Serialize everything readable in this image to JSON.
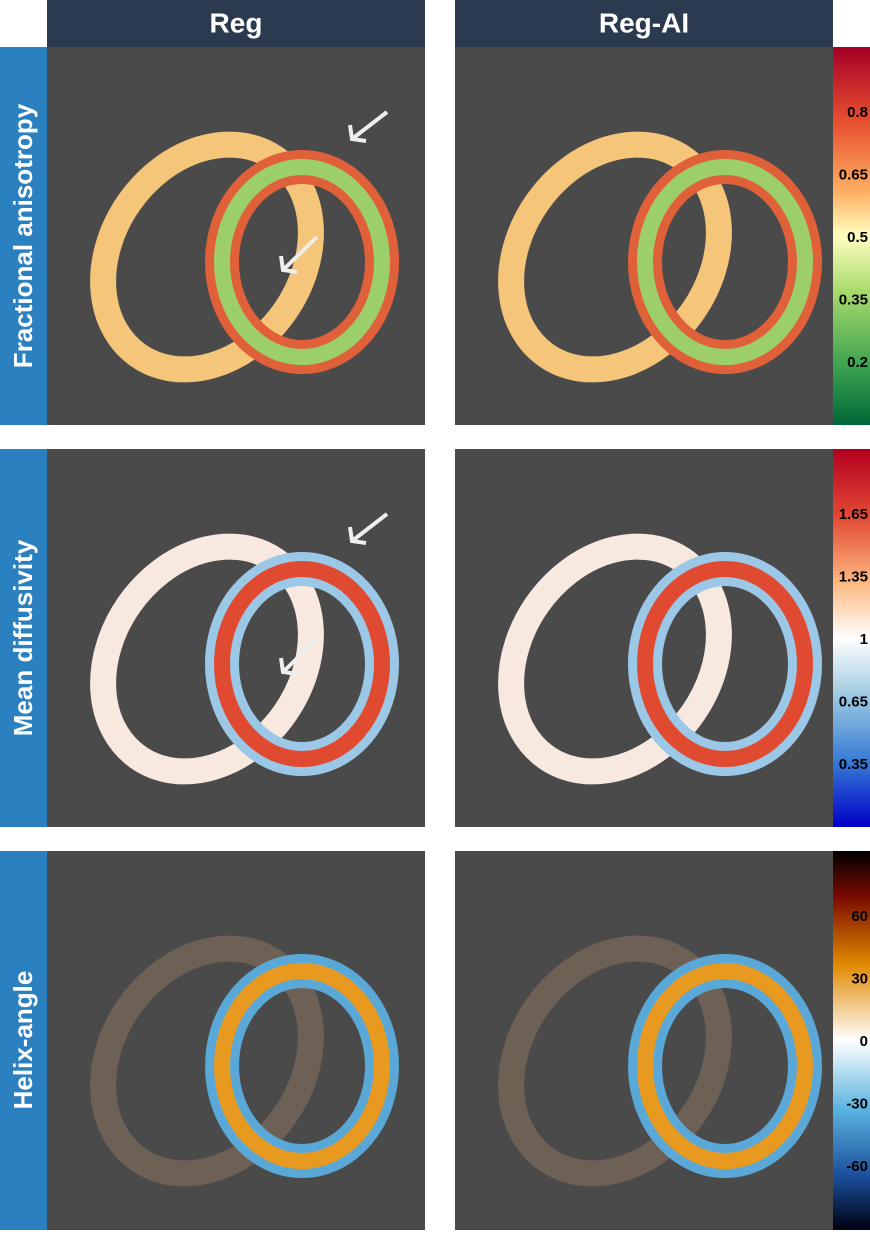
{
  "columns": [
    "Reg",
    "Reg-AI"
  ],
  "rows": [
    {
      "label": "Fractional anisotropy",
      "colorbar": {
        "ticks": [
          0.8,
          0.65,
          0.5,
          0.35,
          0.2
        ]
      }
    },
    {
      "label": "Mean diffusivity",
      "colorbar": {
        "ticks": [
          1.65,
          1.35,
          1,
          0.65,
          0.35
        ]
      }
    },
    {
      "label": "Helix-angle",
      "colorbar": {
        "ticks": [
          60,
          30,
          0,
          -30,
          -60
        ]
      }
    }
  ]
}
